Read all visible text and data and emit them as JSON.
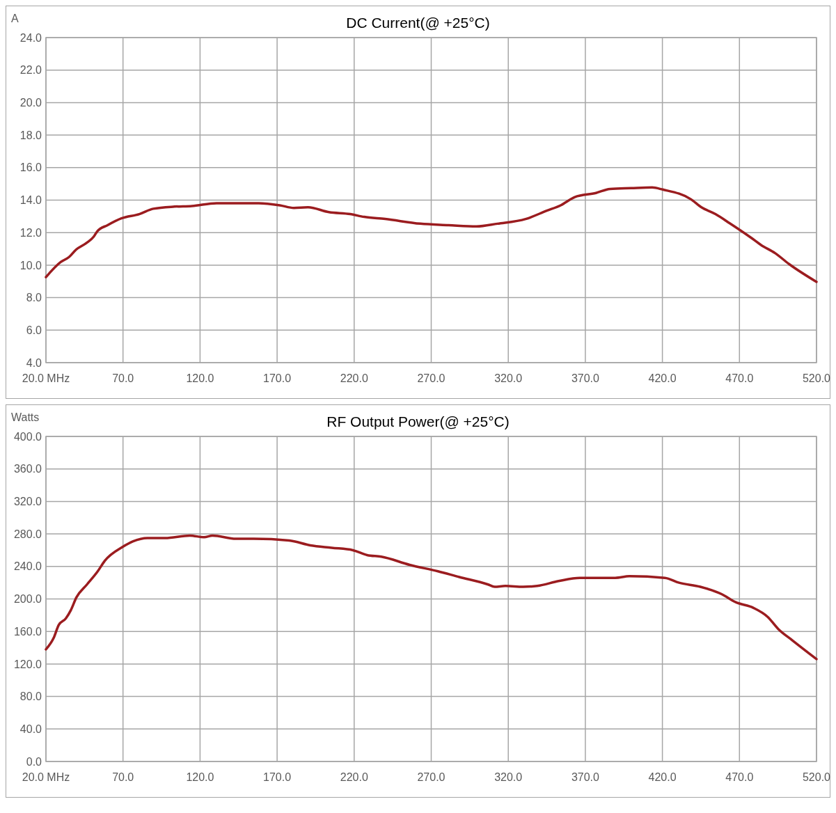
{
  "chart_data": [
    {
      "type": "line",
      "title": "DC Current(@ +25°C)",
      "ylabel": "A",
      "grid": true,
      "marker": "none",
      "line_style": "solid",
      "xlim": [
        20,
        520
      ],
      "ylim": [
        4,
        24
      ],
      "xticks": [
        {
          "value": 20,
          "label": "20.0 MHz"
        },
        {
          "value": 70,
          "label": "70.0"
        },
        {
          "value": 120,
          "label": "120.0"
        },
        {
          "value": 170,
          "label": "170.0"
        },
        {
          "value": 220,
          "label": "220.0"
        },
        {
          "value": 270,
          "label": "270.0"
        },
        {
          "value": 320,
          "label": "320.0"
        },
        {
          "value": 370,
          "label": "370.0"
        },
        {
          "value": 420,
          "label": "420.0"
        },
        {
          "value": 470,
          "label": "470.0"
        },
        {
          "value": 520,
          "label": "520.0"
        }
      ],
      "yticks": [
        {
          "value": 4,
          "label": "4.0"
        },
        {
          "value": 6,
          "label": "6.0"
        },
        {
          "value": 8,
          "label": "8.0"
        },
        {
          "value": 10,
          "label": "10.0"
        },
        {
          "value": 12,
          "label": "12.0"
        },
        {
          "value": 14,
          "label": "14.0"
        },
        {
          "value": 16,
          "label": "16.0"
        },
        {
          "value": 18,
          "label": "18.0"
        },
        {
          "value": 20,
          "label": "20.0"
        },
        {
          "value": 22,
          "label": "22.0"
        },
        {
          "value": 24,
          "label": "24.0"
        }
      ],
      "series": [
        {
          "color": "#9b1c1f",
          "x": [
            20,
            29.6,
            35,
            39.5,
            46.4,
            51,
            53.3,
            60,
            69,
            80.6,
            89.7,
            103.4,
            114.7,
            130.7,
            158,
            171.8,
            180.9,
            190,
            203.6,
            217.4,
            226.5,
            240.1,
            262.9,
            281.2,
            299.4,
            313,
            331.3,
            345,
            354,
            363.2,
            376.9,
            386,
            399.7,
            413.4,
            420.2,
            438.4,
            445.3,
            454.4,
            463.5,
            477.2,
            484,
            493.1,
            502.3,
            520
          ],
          "values": [
            9.26,
            10.19,
            10.5,
            10.95,
            11.37,
            11.75,
            12.08,
            12.46,
            12.88,
            13.14,
            13.47,
            13.6,
            13.64,
            13.81,
            13.81,
            13.68,
            13.52,
            13.56,
            13.26,
            13.14,
            12.97,
            12.84,
            12.55,
            12.46,
            12.38,
            12.55,
            12.84,
            13.35,
            13.68,
            14.19,
            14.44,
            14.69,
            14.74,
            14.78,
            14.65,
            14.06,
            13.56,
            13.14,
            12.59,
            11.71,
            11.24,
            10.74,
            10.06,
            8.97
          ]
        }
      ]
    },
    {
      "type": "line",
      "title": "RF Output Power(@ +25°C)",
      "ylabel": "Watts",
      "grid": true,
      "marker": "none",
      "line_style": "solid",
      "xlim": [
        20,
        520
      ],
      "ylim": [
        0,
        400
      ],
      "xticks": [
        {
          "value": 20,
          "label": "20.0 MHz"
        },
        {
          "value": 70,
          "label": "70.0"
        },
        {
          "value": 120,
          "label": "120.0"
        },
        {
          "value": 170,
          "label": "170.0"
        },
        {
          "value": 220,
          "label": "220.0"
        },
        {
          "value": 270,
          "label": "270.0"
        },
        {
          "value": 320,
          "label": "320.0"
        },
        {
          "value": 370,
          "label": "370.0"
        },
        {
          "value": 420,
          "label": "420.0"
        },
        {
          "value": 470,
          "label": "470.0"
        },
        {
          "value": 520,
          "label": "520.0"
        }
      ],
      "yticks": [
        {
          "value": 0,
          "label": "0.0"
        },
        {
          "value": 40,
          "label": "40.0"
        },
        {
          "value": 80,
          "label": "80.0"
        },
        {
          "value": 120,
          "label": "120.0"
        },
        {
          "value": 160,
          "label": "160.0"
        },
        {
          "value": 200,
          "label": "200.0"
        },
        {
          "value": 240,
          "label": "240.0"
        },
        {
          "value": 280,
          "label": "280.0"
        },
        {
          "value": 320,
          "label": "320.0"
        },
        {
          "value": 360,
          "label": "360.0"
        },
        {
          "value": 400,
          "label": "400.0"
        }
      ],
      "series": [
        {
          "color": "#9b1c1f",
          "x": [
            20,
            25,
            28.3,
            32.9,
            36.1,
            39.8,
            46.7,
            53.6,
            58.2,
            69.7,
            76.6,
            85.8,
            97.3,
            113.4,
            122.6,
            128.1,
            143.3,
            154.8,
            177.8,
            191.6,
            205.4,
            219.2,
            228.4,
            237.6,
            256,
            274.4,
            288.2,
            306.6,
            311.2,
            318.1,
            329.6,
            338.8,
            352.6,
            366.4,
            389.4,
            398.6,
            421.6,
            430.8,
            444.6,
            458.4,
            467.6,
            479.1,
            488.3,
            495.2,
            504.4,
            520
          ],
          "values": [
            138,
            152,
            168,
            176,
            186,
            202,
            218,
            234,
            247,
            264,
            271,
            275,
            275,
            278,
            276,
            278,
            274,
            274,
            272,
            266,
            263,
            260,
            254,
            252,
            242,
            234,
            227,
            218,
            215,
            216,
            215,
            216,
            222,
            226,
            226,
            228,
            226,
            220,
            215,
            206,
            196,
            189,
            178,
            163,
            149,
            126
          ]
        }
      ]
    }
  ]
}
